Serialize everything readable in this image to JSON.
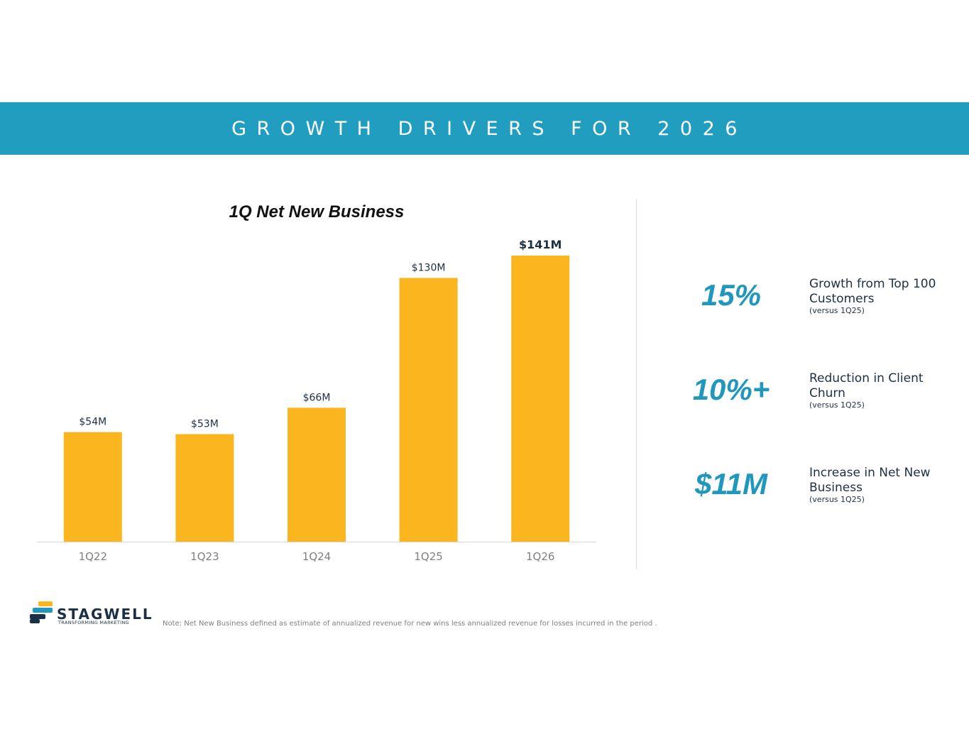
{
  "header": {
    "title": "GROWTH DRIVERS FOR 2026"
  },
  "colors": {
    "banner": "#209dbf",
    "bar": "#fbb51f",
    "accent": "#2197bd",
    "text_dark": "#1e2f45"
  },
  "chart_data": {
    "type": "bar",
    "title": "1Q Net New Business",
    "xlabel": "",
    "ylabel": "",
    "categories": [
      "1Q22",
      "1Q23",
      "1Q24",
      "1Q25",
      "1Q26"
    ],
    "values": [
      54,
      53,
      66,
      130,
      141
    ],
    "data_labels": [
      "$54M",
      "$53M",
      "$66M",
      "$130M",
      "$141M"
    ],
    "highlight_index": 4,
    "ylim": [
      0,
      141
    ],
    "grid": false,
    "legend": "none"
  },
  "stats": [
    {
      "value": "15%",
      "label": "Growth from Top 100 Customers",
      "sub": "(versus 1Q25)"
    },
    {
      "value": "10%+",
      "label": "Reduction in Client Churn",
      "sub": "(versus 1Q25)"
    },
    {
      "value": "$11M",
      "label": "Increase in Net New Business",
      "sub": "(versus 1Q25)"
    }
  ],
  "footer": {
    "logo_icon": "stagwell-logo-icon",
    "logo_word": "STAGWELL",
    "logo_tagline": "TRANSFORMING MARKETING",
    "note": "Note: Net New Business defined as estimate of annualized revenue for new wins less annualized revenue for losses incurred in the period ."
  }
}
